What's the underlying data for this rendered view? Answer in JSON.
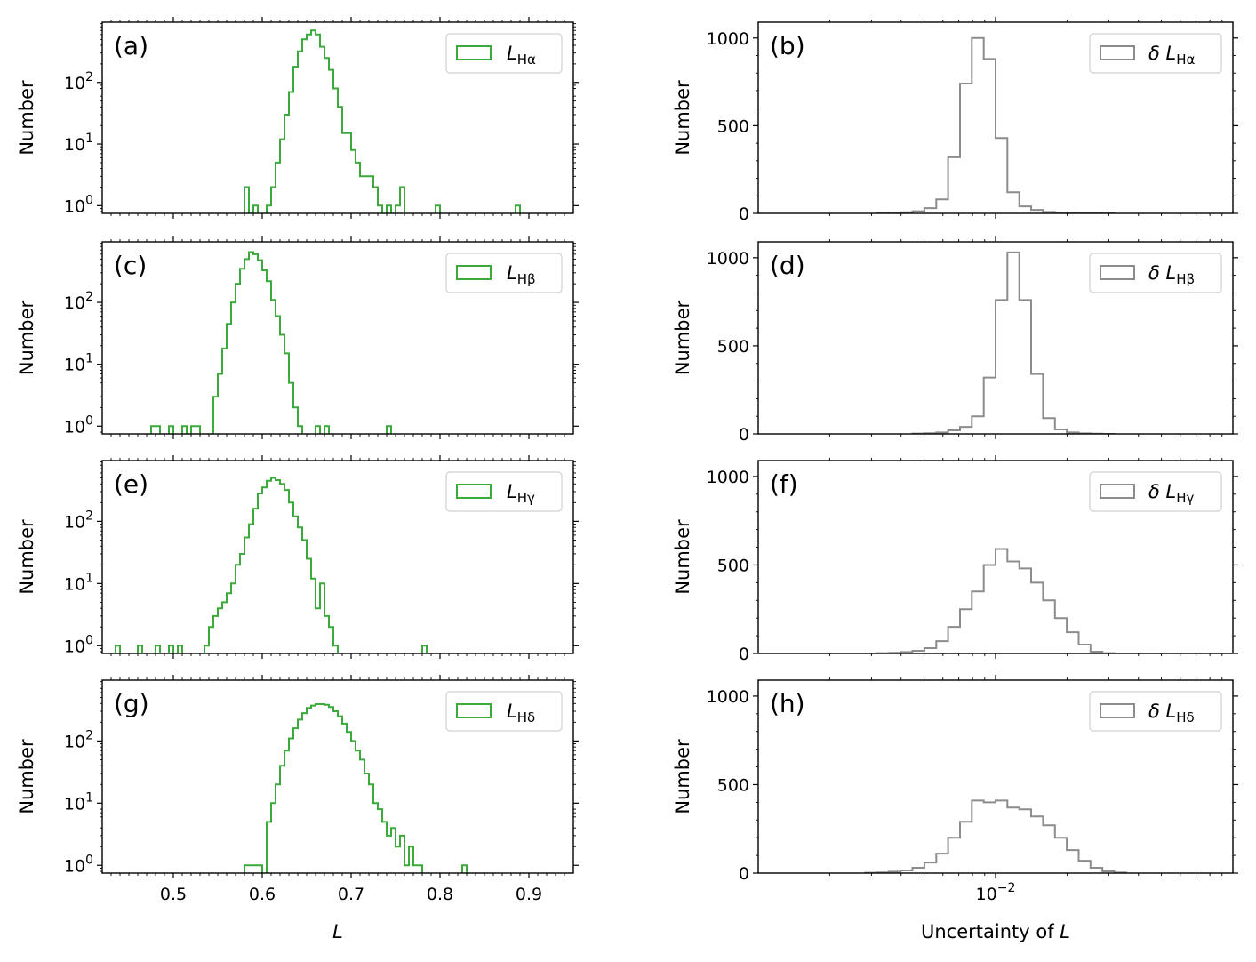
{
  "colors": {
    "green": "#3aaa3a",
    "gray": "#8c8c8c"
  },
  "chart_data": [
    {
      "id": "a",
      "type": "histogram",
      "panel_label": "(a)",
      "scale": "log",
      "color": "#3aaa3a",
      "legend": {
        "prefix": "",
        "symbol": "L",
        "sub": "Hα"
      },
      "ylabel": "Number",
      "xlabel": "",
      "xlim": [
        0.42,
        0.95
      ],
      "ylim": [
        0.75,
        950
      ],
      "yticks": [
        {
          "value": 1,
          "base": "10",
          "exp": "0"
        },
        {
          "value": 10,
          "base": "10",
          "exp": "1"
        },
        {
          "value": 100,
          "base": "10",
          "exp": "2"
        }
      ],
      "xticks": [],
      "edges": [
        0.58,
        0.585,
        0.59,
        0.595,
        0.6,
        0.605,
        0.61,
        0.615,
        0.62,
        0.625,
        0.63,
        0.635,
        0.64,
        0.645,
        0.65,
        0.655,
        0.66,
        0.665,
        0.67,
        0.675,
        0.68,
        0.685,
        0.69,
        0.695,
        0.7,
        0.705,
        0.71,
        0.715,
        0.72,
        0.725,
        0.73,
        0.735,
        0.74,
        0.745,
        0.75,
        0.755,
        0.76,
        0.765,
        0.77,
        0.775,
        0.78,
        0.785,
        0.79,
        0.795,
        0.8,
        0.805,
        0.81,
        0.815,
        0.82,
        0.825,
        0.83,
        0.835,
        0.84,
        0.845,
        0.85,
        0.855,
        0.86,
        0.865,
        0.87,
        0.875,
        0.88,
        0.885,
        0.89
      ],
      "counts": [
        2,
        0,
        1,
        0,
        0,
        1,
        2,
        5,
        12,
        30,
        70,
        180,
        320,
        500,
        600,
        700,
        600,
        380,
        250,
        160,
        80,
        40,
        15,
        15,
        8,
        5,
        3,
        3,
        3,
        2,
        1,
        0,
        1,
        0,
        1,
        2,
        0,
        0,
        0,
        0,
        0,
        0,
        0,
        1,
        0,
        0,
        0,
        0,
        0,
        0,
        0,
        0,
        0,
        0,
        0,
        0,
        0,
        0,
        0,
        0,
        0,
        1
      ]
    },
    {
      "id": "b",
      "type": "histogram",
      "panel_label": "(b)",
      "scale": "linear",
      "color": "#8c8c8c",
      "legend": {
        "prefix": "δ ",
        "symbol": "L",
        "sub": "Hα"
      },
      "ylabel": "Number",
      "xlabel": "",
      "xlim": [
        -3.0,
        -1.0
      ],
      "ylim": [
        0,
        1000
      ],
      "yticks": [
        {
          "value": 0,
          "label": "0"
        },
        {
          "value": 500,
          "label": "500"
        },
        {
          "value": 1000,
          "label": "1000"
        }
      ],
      "xticks": [],
      "edges": [
        -2.5,
        -2.45,
        -2.4,
        -2.35,
        -2.3,
        -2.25,
        -2.2,
        -2.15,
        -2.1,
        -2.05,
        -2.0,
        -1.95,
        -1.9,
        -1.85,
        -1.8,
        -1.75,
        -1.7,
        -1.65,
        -1.6,
        -1.55,
        -1.5
      ],
      "counts": [
        2,
        4,
        6,
        12,
        30,
        80,
        320,
        740,
        1000,
        880,
        430,
        120,
        40,
        20,
        8,
        4,
        2,
        1,
        1,
        0
      ]
    },
    {
      "id": "c",
      "type": "histogram",
      "panel_label": "(c)",
      "scale": "log",
      "color": "#3aaa3a",
      "legend": {
        "prefix": "",
        "symbol": "L",
        "sub": "Hβ"
      },
      "ylabel": "Number",
      "xlabel": "",
      "xlim": [
        0.42,
        0.95
      ],
      "ylim": [
        0.75,
        950
      ],
      "yticks": [
        {
          "value": 1,
          "base": "10",
          "exp": "0"
        },
        {
          "value": 10,
          "base": "10",
          "exp": "1"
        },
        {
          "value": 100,
          "base": "10",
          "exp": "2"
        }
      ],
      "xticks": [],
      "edges": [
        0.475,
        0.48,
        0.485,
        0.49,
        0.495,
        0.5,
        0.505,
        0.51,
        0.515,
        0.52,
        0.525,
        0.53,
        0.535,
        0.54,
        0.545,
        0.55,
        0.555,
        0.56,
        0.565,
        0.57,
        0.575,
        0.58,
        0.585,
        0.59,
        0.595,
        0.6,
        0.605,
        0.61,
        0.615,
        0.62,
        0.625,
        0.63,
        0.635,
        0.64,
        0.645,
        0.65,
        0.655,
        0.66,
        0.665,
        0.67,
        0.675,
        0.68,
        0.685,
        0.69,
        0.695,
        0.7,
        0.705,
        0.71,
        0.715,
        0.72,
        0.725,
        0.73,
        0.735,
        0.74,
        0.745
      ],
      "counts": [
        1,
        1,
        0,
        0,
        1,
        0,
        0,
        1,
        0,
        1,
        1,
        0,
        0,
        0,
        3,
        7,
        18,
        45,
        100,
        200,
        350,
        500,
        650,
        600,
        480,
        330,
        220,
        110,
        60,
        30,
        15,
        5,
        2,
        1,
        0,
        0,
        0,
        1,
        0,
        1,
        0,
        0,
        0,
        0,
        0,
        0,
        0,
        0,
        0,
        0,
        0,
        0,
        0,
        1
      ]
    },
    {
      "id": "d",
      "type": "histogram",
      "panel_label": "(d)",
      "scale": "linear",
      "color": "#8c8c8c",
      "legend": {
        "prefix": "δ ",
        "symbol": "L",
        "sub": "Hβ"
      },
      "ylabel": "Number",
      "xlabel": "",
      "xlim": [
        -3.0,
        -1.0
      ],
      "ylim": [
        0,
        1000
      ],
      "yticks": [
        {
          "value": 0,
          "label": "0"
        },
        {
          "value": 500,
          "label": "500"
        },
        {
          "value": 1000,
          "label": "1000"
        }
      ],
      "xticks": [],
      "edges": [
        -2.35,
        -2.3,
        -2.25,
        -2.2,
        -2.15,
        -2.1,
        -2.05,
        -2.0,
        -1.95,
        -1.9,
        -1.85,
        -1.8,
        -1.75,
        -1.7,
        -1.65,
        -1.6,
        -1.55,
        -1.5
      ],
      "counts": [
        2,
        4,
        8,
        20,
        40,
        100,
        320,
        760,
        1030,
        760,
        340,
        90,
        25,
        8,
        3,
        1,
        0
      ]
    },
    {
      "id": "e",
      "type": "histogram",
      "panel_label": "(e)",
      "scale": "log",
      "color": "#3aaa3a",
      "legend": {
        "prefix": "",
        "symbol": "L",
        "sub": "Hγ"
      },
      "ylabel": "Number",
      "xlabel": "",
      "xlim": [
        0.42,
        0.95
      ],
      "ylim": [
        0.75,
        950
      ],
      "yticks": [
        {
          "value": 1,
          "base": "10",
          "exp": "0"
        },
        {
          "value": 10,
          "base": "10",
          "exp": "1"
        },
        {
          "value": 100,
          "base": "10",
          "exp": "2"
        }
      ],
      "xticks": [],
      "edges": [
        0.435,
        0.44,
        0.445,
        0.45,
        0.455,
        0.46,
        0.465,
        0.47,
        0.475,
        0.48,
        0.485,
        0.49,
        0.495,
        0.5,
        0.505,
        0.51,
        0.515,
        0.52,
        0.525,
        0.53,
        0.535,
        0.54,
        0.545,
        0.55,
        0.555,
        0.56,
        0.565,
        0.57,
        0.575,
        0.58,
        0.585,
        0.59,
        0.595,
        0.6,
        0.605,
        0.61,
        0.615,
        0.62,
        0.625,
        0.63,
        0.635,
        0.64,
        0.645,
        0.65,
        0.655,
        0.66,
        0.665,
        0.67,
        0.675,
        0.68,
        0.685,
        0.69,
        0.695,
        0.7,
        0.705,
        0.71,
        0.715,
        0.72,
        0.725,
        0.73,
        0.735,
        0.74,
        0.745,
        0.75,
        0.755,
        0.76,
        0.765,
        0.77,
        0.775,
        0.78,
        0.785
      ],
      "counts": [
        1,
        0,
        0,
        0,
        0,
        1,
        0,
        0,
        0,
        1,
        0,
        0,
        1,
        0,
        1,
        0,
        0,
        0,
        0,
        0,
        1,
        2,
        3,
        4,
        5,
        7,
        10,
        20,
        30,
        55,
        90,
        160,
        280,
        350,
        450,
        500,
        460,
        400,
        320,
        200,
        120,
        80,
        50,
        25,
        12,
        4,
        10,
        3,
        2,
        1,
        0,
        0,
        0,
        0,
        0,
        0,
        0,
        0,
        0,
        0,
        0,
        0,
        0,
        0,
        0,
        0,
        0,
        0,
        0,
        1
      ]
    },
    {
      "id": "f",
      "type": "histogram",
      "panel_label": "(f)",
      "scale": "linear",
      "color": "#8c8c8c",
      "legend": {
        "prefix": "δ ",
        "symbol": "L",
        "sub": "Hγ"
      },
      "ylabel": "Number",
      "xlabel": "",
      "xlim": [
        -3.0,
        -1.0
      ],
      "ylim": [
        0,
        1000
      ],
      "yticks": [
        {
          "value": 0,
          "label": "0"
        },
        {
          "value": 500,
          "label": "500"
        },
        {
          "value": 1000,
          "label": "1000"
        }
      ],
      "xticks": [],
      "edges": [
        -2.5,
        -2.45,
        -2.4,
        -2.35,
        -2.3,
        -2.25,
        -2.2,
        -2.15,
        -2.1,
        -2.05,
        -2.0,
        -1.95,
        -1.9,
        -1.85,
        -1.8,
        -1.75,
        -1.7,
        -1.65,
        -1.6,
        -1.55,
        -1.5
      ],
      "counts": [
        2,
        4,
        8,
        15,
        30,
        70,
        150,
        250,
        350,
        500,
        590,
        520,
        480,
        400,
        300,
        200,
        120,
        50,
        10,
        2
      ]
    },
    {
      "id": "g",
      "type": "histogram",
      "panel_label": "(g)",
      "scale": "log",
      "color": "#3aaa3a",
      "legend": {
        "prefix": "",
        "symbol": "L",
        "sub": "Hδ"
      },
      "ylabel": "Number",
      "xlabel": "L",
      "xlim": [
        0.42,
        0.95
      ],
      "ylim": [
        0.75,
        950
      ],
      "yticks": [
        {
          "value": 1,
          "base": "10",
          "exp": "0"
        },
        {
          "value": 10,
          "base": "10",
          "exp": "1"
        },
        {
          "value": 100,
          "base": "10",
          "exp": "2"
        }
      ],
      "xticks": [
        {
          "value": 0.5,
          "label": "0.5"
        },
        {
          "value": 0.6,
          "label": "0.6"
        },
        {
          "value": 0.7,
          "label": "0.7"
        },
        {
          "value": 0.8,
          "label": "0.8"
        },
        {
          "value": 0.9,
          "label": "0.9"
        }
      ],
      "edges": [
        0.58,
        0.585,
        0.59,
        0.595,
        0.6,
        0.605,
        0.61,
        0.615,
        0.62,
        0.625,
        0.63,
        0.635,
        0.64,
        0.645,
        0.65,
        0.655,
        0.66,
        0.665,
        0.67,
        0.675,
        0.68,
        0.685,
        0.69,
        0.695,
        0.7,
        0.705,
        0.71,
        0.715,
        0.72,
        0.725,
        0.73,
        0.735,
        0.74,
        0.745,
        0.75,
        0.755,
        0.76,
        0.765,
        0.77,
        0.775,
        0.78,
        0.785,
        0.79,
        0.795,
        0.8,
        0.805,
        0.81,
        0.815,
        0.82,
        0.825,
        0.83
      ],
      "counts": [
        1,
        1,
        1,
        1,
        0,
        5,
        10,
        20,
        40,
        70,
        110,
        160,
        220,
        280,
        340,
        370,
        390,
        390,
        380,
        350,
        300,
        250,
        190,
        140,
        100,
        70,
        50,
        30,
        20,
        10,
        8,
        5,
        3,
        4,
        2,
        3,
        1,
        2,
        1,
        1,
        0,
        0,
        0,
        0,
        0,
        0,
        0,
        0,
        0,
        1
      ]
    },
    {
      "id": "h",
      "type": "histogram",
      "panel_label": "(h)",
      "scale": "linear",
      "color": "#8c8c8c",
      "legend": {
        "prefix": "δ ",
        "symbol": "L",
        "sub": "Hδ"
      },
      "ylabel": "Number",
      "xlabel": "Uncertainty of L",
      "xlim": [
        -3.0,
        -1.0
      ],
      "ylim": [
        0,
        1000
      ],
      "yticks": [
        {
          "value": 0,
          "label": "0"
        },
        {
          "value": 500,
          "label": "500"
        },
        {
          "value": 1000,
          "label": "1000"
        }
      ],
      "xticks": [
        {
          "value": -2.0,
          "base": "10",
          "exp": "−2"
        }
      ],
      "edges": [
        -2.55,
        -2.5,
        -2.45,
        -2.4,
        -2.35,
        -2.3,
        -2.25,
        -2.2,
        -2.15,
        -2.1,
        -2.05,
        -2.0,
        -1.95,
        -1.9,
        -1.85,
        -1.8,
        -1.75,
        -1.7,
        -1.65,
        -1.6,
        -1.55,
        -1.5,
        -1.45
      ],
      "counts": [
        2,
        4,
        8,
        15,
        30,
        60,
        110,
        200,
        290,
        410,
        400,
        410,
        370,
        360,
        320,
        270,
        200,
        130,
        70,
        30,
        10,
        3
      ]
    }
  ]
}
